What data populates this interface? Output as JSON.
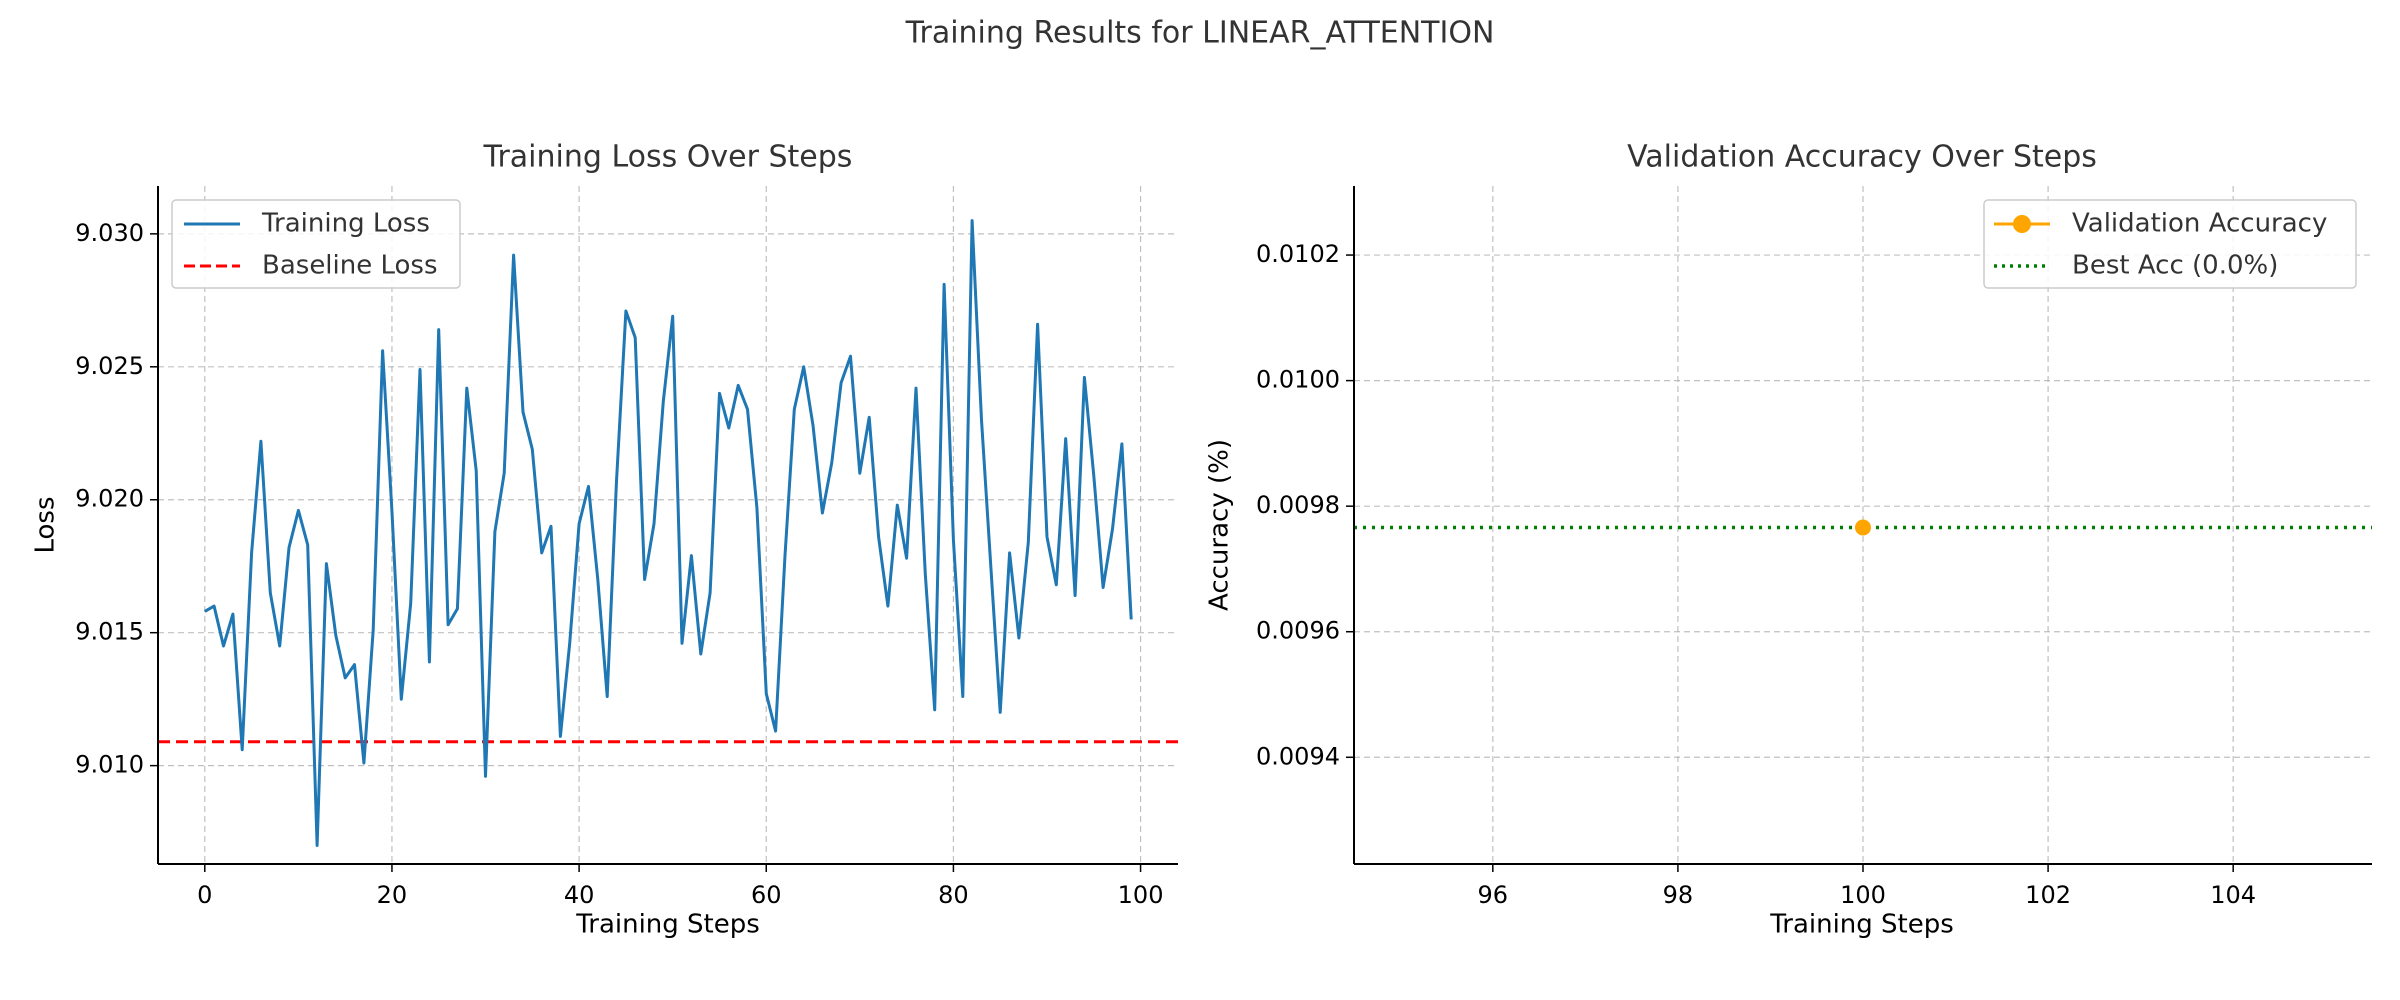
{
  "suptitle": "Training Results for LINEAR_ATTENTION",
  "chart_data": [
    {
      "type": "line",
      "title": "Training Loss Over Steps",
      "xlabel": "Training Steps",
      "ylabel": "Loss",
      "xlim": [
        -5,
        104
      ],
      "ylim": [
        9.0063,
        9.0318
      ],
      "xticks": [
        0,
        20,
        40,
        60,
        80,
        100
      ],
      "xtick_labels": [
        "0",
        "20",
        "40",
        "60",
        "80",
        "100"
      ],
      "yticks": [
        9.01,
        9.015,
        9.02,
        9.025,
        9.03
      ],
      "ytick_labels": [
        "9.010",
        "9.015",
        "9.020",
        "9.025",
        "9.030"
      ],
      "grid": true,
      "legend_position": "upper-left",
      "colors": {
        "loss": "#1f77b4",
        "baseline": "#ff0000"
      },
      "series": [
        {
          "name": "Training Loss",
          "x_start": 0,
          "x_step": 1,
          "values": [
            9.0158,
            9.016,
            9.0145,
            9.0157,
            9.0106,
            9.018,
            9.0222,
            9.0165,
            9.0145,
            9.0182,
            9.0196,
            9.0183,
            9.007,
            9.0176,
            9.0149,
            9.0133,
            9.0138,
            9.0101,
            9.0151,
            9.0256,
            9.0196,
            9.0125,
            9.0161,
            9.0249,
            9.0139,
            9.0264,
            9.0153,
            9.0159,
            9.0242,
            9.0211,
            9.0096,
            9.0188,
            9.021,
            9.0292,
            9.0233,
            9.0219,
            9.018,
            9.019,
            9.0111,
            9.0146,
            9.0191,
            9.0205,
            9.017,
            9.0126,
            9.0207,
            9.0271,
            9.0261,
            9.017,
            9.0191,
            9.0237,
            9.0269,
            9.0146,
            9.0179,
            9.0142,
            9.0165,
            9.024,
            9.0227,
            9.0243,
            9.0234,
            9.0197,
            9.0127,
            9.0113,
            9.0179,
            9.0234,
            9.025,
            9.0228,
            9.0195,
            9.0214,
            9.0244,
            9.0254,
            9.021,
            9.0231,
            9.0186,
            9.016,
            9.0198,
            9.0178,
            9.0242,
            9.0172,
            9.0121,
            9.0281,
            9.0185,
            9.0126,
            9.0305,
            9.023,
            9.0175,
            9.012,
            9.018,
            9.0148,
            9.0184,
            9.0266,
            9.0186,
            9.0168,
            9.0223,
            9.0164,
            9.0246,
            9.0209,
            9.0167,
            9.0189,
            9.0221,
            9.0155
          ]
        },
        {
          "name": "Baseline Loss",
          "style": "dashed",
          "values": [
            9.0109
          ]
        }
      ]
    },
    {
      "type": "line",
      "title": "Validation Accuracy Over Steps",
      "xlabel": "Training Steps",
      "ylabel": "Accuracy (%)",
      "xlim": [
        94.5,
        105.5
      ],
      "ylim": [
        0.00923,
        0.01031
      ],
      "xticks": [
        96,
        98,
        100,
        102,
        104
      ],
      "xtick_labels": [
        "96",
        "98",
        "100",
        "102",
        "104"
      ],
      "yticks": [
        0.0094,
        0.0096,
        0.0098,
        0.01,
        0.0102
      ],
      "ytick_labels": [
        "0.0094",
        "0.0096",
        "0.0098",
        "0.0100",
        "0.0102"
      ],
      "grid": true,
      "legend_position": "upper-right",
      "colors": {
        "accuracy": "#ffa500",
        "best": "#008000"
      },
      "series": [
        {
          "name": "Validation Accuracy",
          "marker": "circle",
          "x": [
            100
          ],
          "values": [
            0.009766
          ]
        },
        {
          "name": "Best Acc (0.0%)",
          "style": "dotted",
          "values": [
            0.009766
          ]
        }
      ]
    }
  ]
}
